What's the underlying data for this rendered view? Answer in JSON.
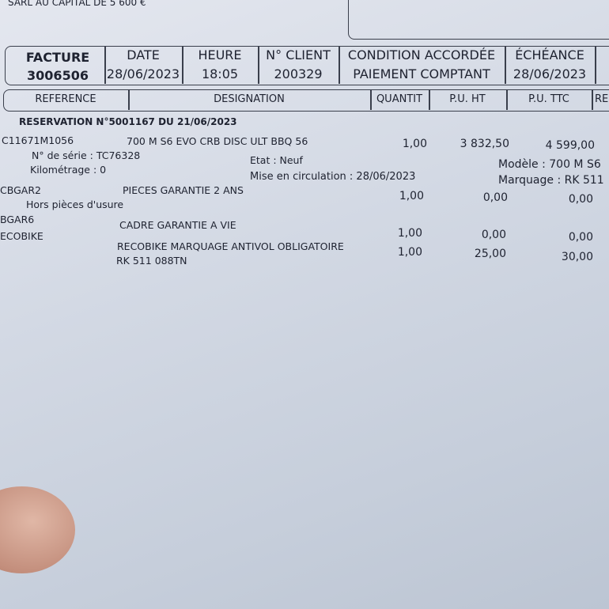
{
  "company": {
    "capital": "SARL AU CAPITAL DE 5 600 €"
  },
  "header": {
    "facture_label": "FACTURE",
    "facture_number": "3006506",
    "date_label": "DATE",
    "date_value": "28/06/2023",
    "heure_label": "HEURE",
    "heure_value": "18:05",
    "client_label": "N° CLIENT",
    "client_value": "200329",
    "condition_label": "CONDITION ACCORDÉE",
    "condition_value": "PAIEMENT COMPTANT",
    "echeance_label": "ÉCHÉANCE",
    "echeance_value": "28/06/2023"
  },
  "columns": [
    "REFERENCE",
    "DESIGNATION",
    "QUANTIT",
    "P.U. HT",
    "P.U. TTC",
    "RE"
  ],
  "reservation": "RESERVATION N°5001167 DU 21/06/2023",
  "lines": [
    {
      "ref": "C11671M1056",
      "designation": "700 M S6 EVO CRB DISC ULT BBQ 56",
      "qty": "1,00",
      "pu_ht": "3 832,50",
      "pu_ttc": "4 599,00"
    },
    {
      "ref": "CBGAR2",
      "designation": "PIECES GARANTIE 2 ANS",
      "qty": "1,00",
      "pu_ht": "0,00",
      "pu_ttc": "0,00"
    },
    {
      "ref": "BGAR6",
      "designation": "CADRE GARANTIE A VIE",
      "qty": "1,00",
      "pu_ht": "0,00",
      "pu_ttc": "0,00"
    },
    {
      "ref": "ECOBIKE",
      "designation": "RECOBIKE MARQUAGE ANTIVOL OBLIGATOIRE",
      "qty": "1,00",
      "pu_ht": "25,00",
      "pu_ttc": "30,00"
    }
  ],
  "details": {
    "serie": "N° de série : TC76328",
    "km": "Kilométrage : 0",
    "etat": "Etat : Neuf",
    "circulation": "Mise en circulation : 28/06/2023",
    "modele": "Modèle : 700 M S6",
    "marquage": "Marquage : RK 511",
    "usure": "Hors pièces d'usure",
    "rk": "RK 511 088TN"
  }
}
